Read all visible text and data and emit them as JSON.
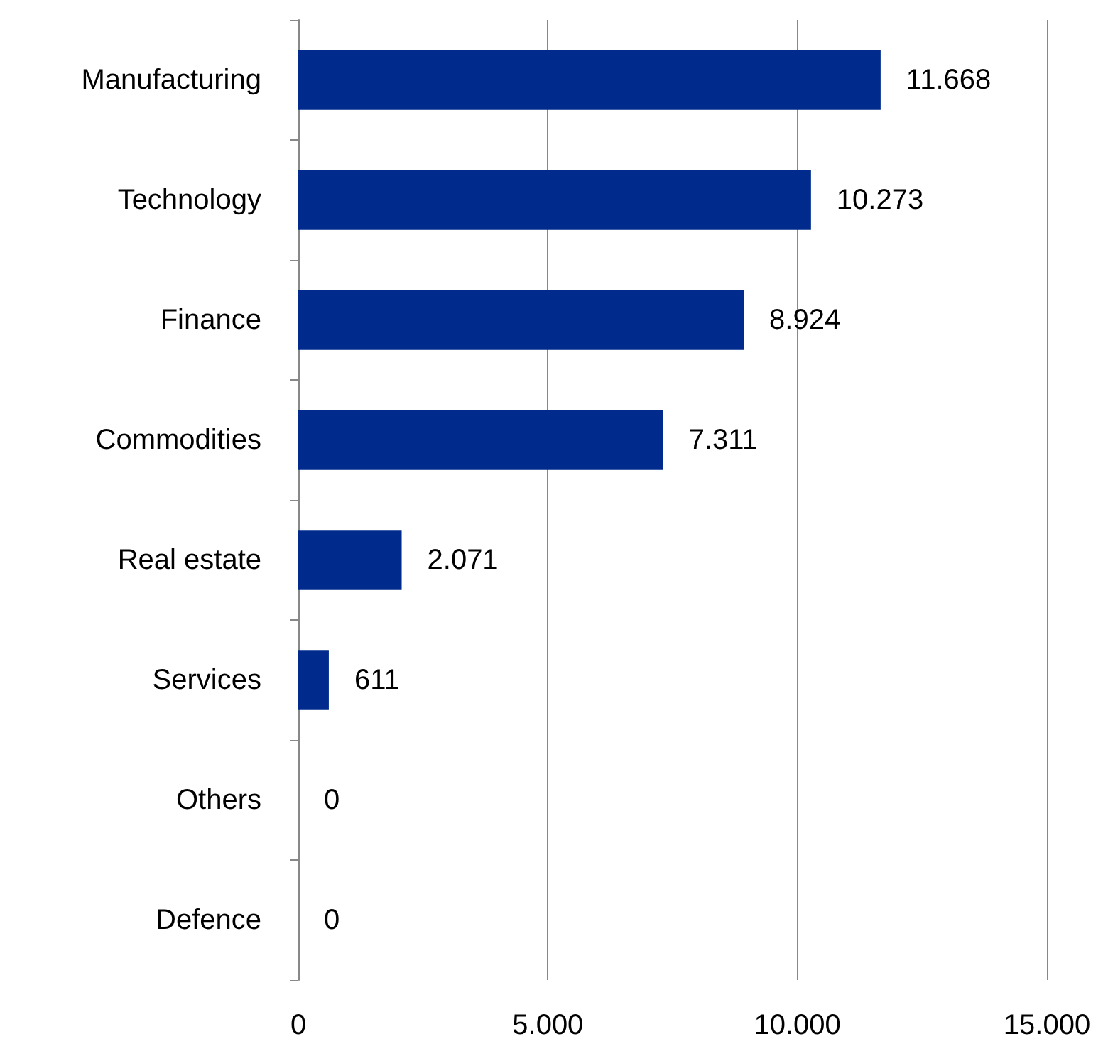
{
  "chart_data": {
    "type": "bar",
    "orientation": "horizontal",
    "categories": [
      "Manufacturing",
      "Technology",
      "Finance",
      "Commodities",
      "Real estate",
      "Services",
      "Others",
      "Defence"
    ],
    "values": [
      11668,
      10273,
      8924,
      7311,
      2071,
      611,
      0,
      0
    ],
    "value_labels": [
      "11.668",
      "10.273",
      "8.924",
      "7.311",
      "2.071",
      "611",
      "0",
      "0"
    ],
    "color": "#002b8c",
    "xlim": [
      0,
      15000
    ],
    "xticks": [
      {
        "value": 0,
        "label": "0"
      },
      {
        "value": 5000,
        "label": "5.000"
      },
      {
        "value": 10000,
        "label": "10.000"
      },
      {
        "value": 15000,
        "label": "15.000"
      }
    ],
    "grid": "x"
  }
}
